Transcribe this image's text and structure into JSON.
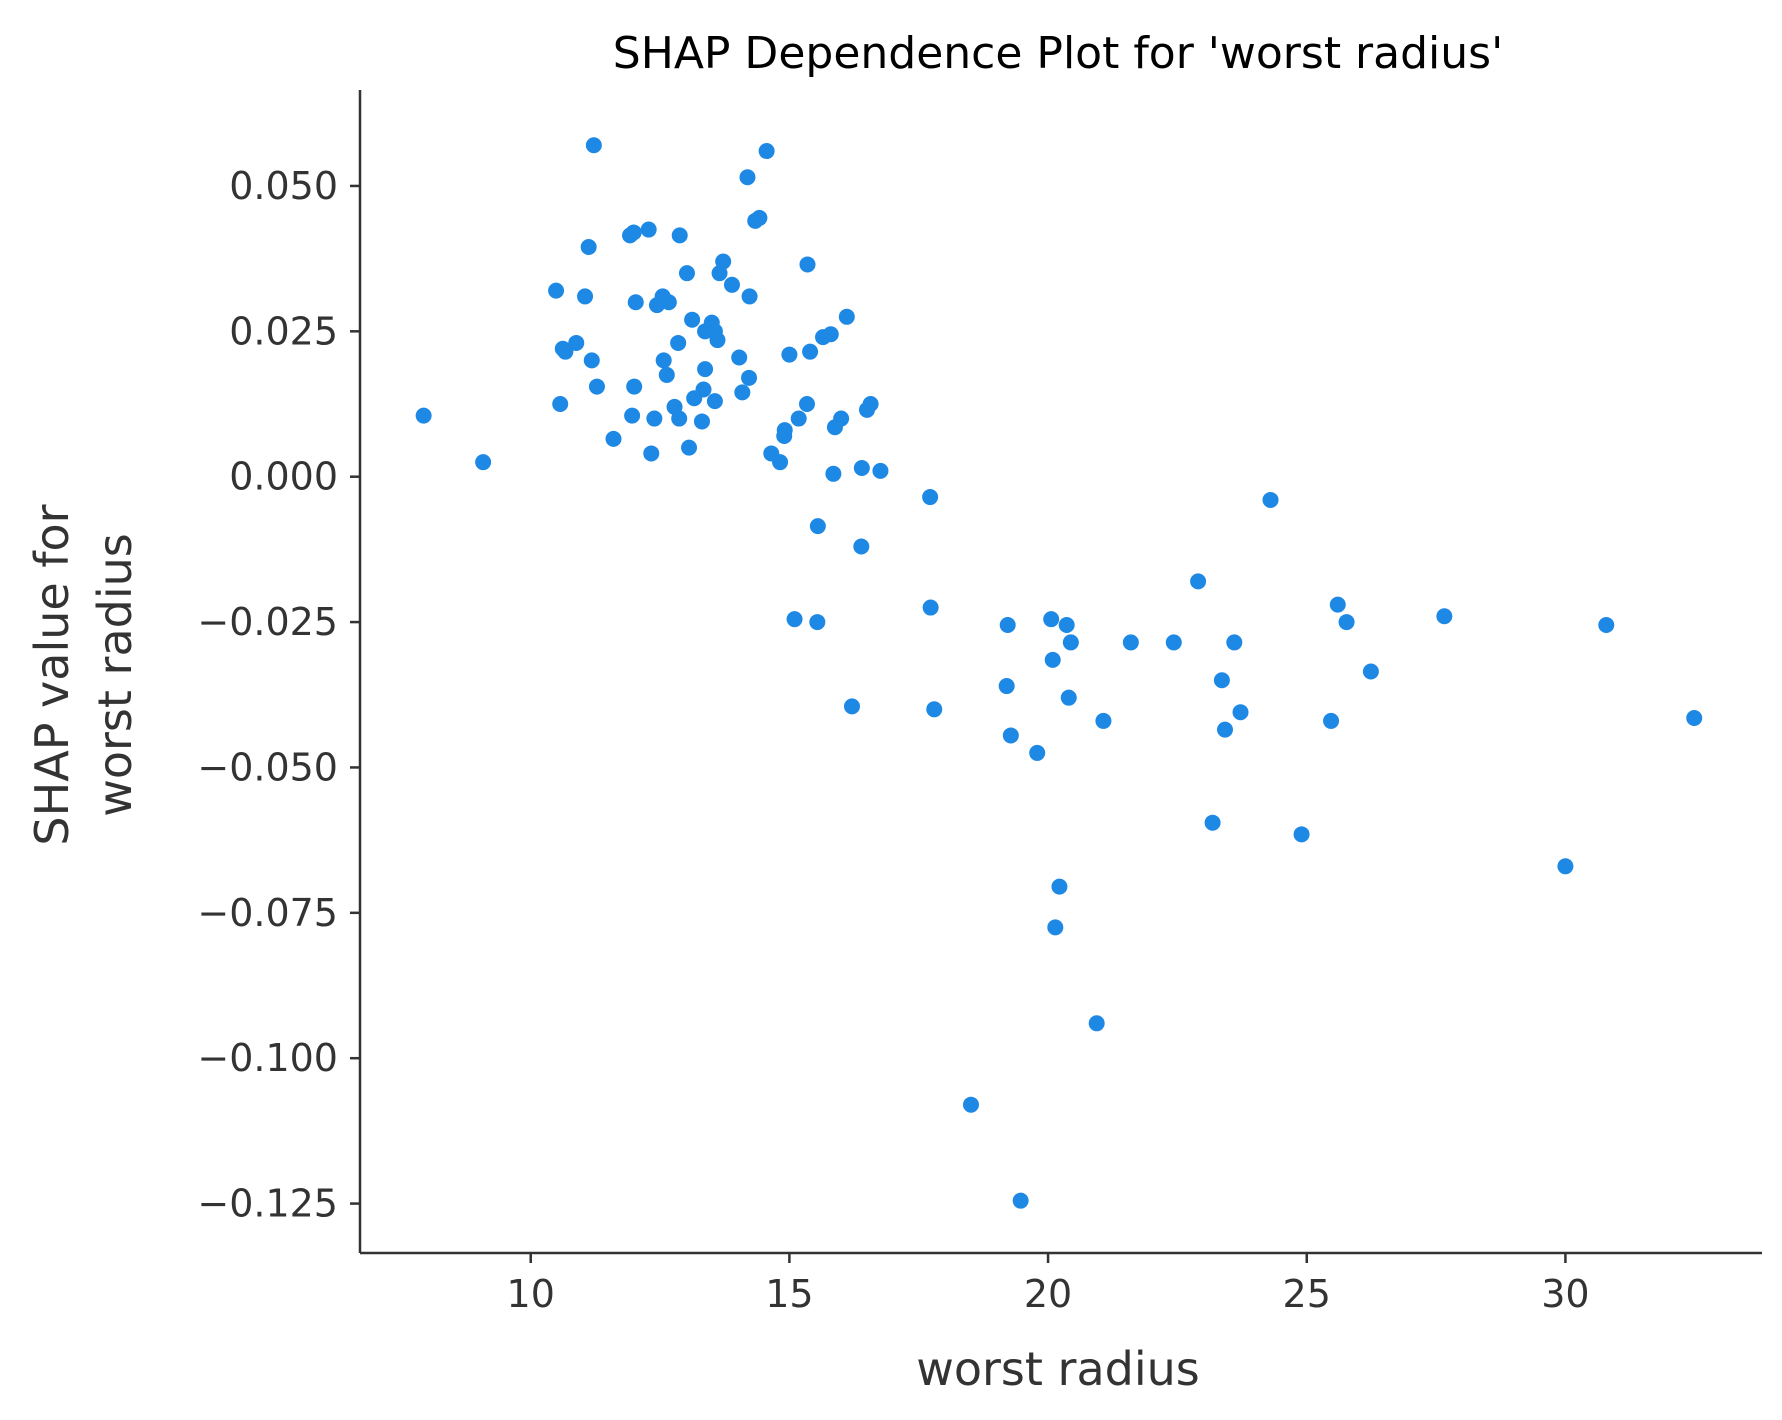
{
  "chart_data": {
    "type": "scatter",
    "title": "SHAP Dependence Plot for 'worst radius'",
    "xlabel": "worst radius",
    "ylabel_lines": [
      "SHAP value for",
      "worst radius"
    ],
    "xlim": [
      6.7,
      33.8
    ],
    "ylim": [
      -0.1335,
      0.0665
    ],
    "xticks": [
      {
        "value": 10,
        "label": "10"
      },
      {
        "value": 15,
        "label": "15"
      },
      {
        "value": 20,
        "label": "20"
      },
      {
        "value": 25,
        "label": "25"
      },
      {
        "value": 30,
        "label": "30"
      }
    ],
    "yticks": [
      {
        "value": 0.05,
        "label": "0.050"
      },
      {
        "value": 0.025,
        "label": "0.025"
      },
      {
        "value": 0.0,
        "label": "0.000"
      },
      {
        "value": -0.025,
        "label": "−0.025"
      },
      {
        "value": -0.05,
        "label": "−0.050"
      },
      {
        "value": -0.075,
        "label": "−0.075"
      },
      {
        "value": -0.1,
        "label": "−0.100"
      },
      {
        "value": -0.125,
        "label": "−0.125"
      }
    ],
    "grid": false,
    "point_color": "#1e88e5",
    "axis_color": "#333333",
    "points": [
      [
        7.93,
        0.0105
      ],
      [
        9.08,
        0.0025
      ],
      [
        10.49,
        0.032
      ],
      [
        10.57,
        0.0125
      ],
      [
        10.62,
        0.022
      ],
      [
        10.67,
        0.0215
      ],
      [
        10.88,
        0.023
      ],
      [
        11.05,
        0.031
      ],
      [
        11.12,
        0.0395
      ],
      [
        11.18,
        0.02
      ],
      [
        11.22,
        0.057
      ],
      [
        11.28,
        0.0155
      ],
      [
        11.6,
        0.0065
      ],
      [
        11.92,
        0.0415
      ],
      [
        11.96,
        0.0105
      ],
      [
        11.99,
        0.042
      ],
      [
        12.0,
        0.0155
      ],
      [
        12.03,
        0.03
      ],
      [
        12.28,
        0.0425
      ],
      [
        12.33,
        0.004
      ],
      [
        12.39,
        0.01
      ],
      [
        12.44,
        0.0295
      ],
      [
        12.55,
        0.031
      ],
      [
        12.57,
        0.02
      ],
      [
        12.63,
        0.0175
      ],
      [
        12.67,
        0.03
      ],
      [
        12.78,
        0.012
      ],
      [
        12.85,
        0.023
      ],
      [
        12.87,
        0.01
      ],
      [
        12.88,
        0.0415
      ],
      [
        13.02,
        0.035
      ],
      [
        13.06,
        0.005
      ],
      [
        13.12,
        0.027
      ],
      [
        13.16,
        0.0135
      ],
      [
        13.31,
        0.0095
      ],
      [
        13.34,
        0.015
      ],
      [
        13.37,
        0.025
      ],
      [
        13.37,
        0.0185
      ],
      [
        13.5,
        0.0265
      ],
      [
        13.56,
        0.025
      ],
      [
        13.56,
        0.013
      ],
      [
        13.61,
        0.0235
      ],
      [
        13.65,
        0.035
      ],
      [
        13.72,
        0.037
      ],
      [
        13.89,
        0.033
      ],
      [
        14.03,
        0.0205
      ],
      [
        14.09,
        0.0145
      ],
      [
        14.19,
        0.0515
      ],
      [
        14.22,
        0.017
      ],
      [
        14.23,
        0.031
      ],
      [
        14.34,
        0.044
      ],
      [
        14.42,
        0.0445
      ],
      [
        14.56,
        0.056
      ],
      [
        14.65,
        0.004
      ],
      [
        14.82,
        0.0025
      ],
      [
        14.9,
        0.007
      ],
      [
        14.91,
        0.008
      ],
      [
        15.0,
        0.021
      ],
      [
        15.1,
        -0.0245
      ],
      [
        15.18,
        0.01
      ],
      [
        15.34,
        0.0125
      ],
      [
        15.35,
        0.0365
      ],
      [
        15.4,
        0.0215
      ],
      [
        15.54,
        -0.025
      ],
      [
        15.55,
        -0.0085
      ],
      [
        15.65,
        0.024
      ],
      [
        15.8,
        0.0245
      ],
      [
        15.85,
        0.0005
      ],
      [
        15.88,
        0.0085
      ],
      [
        16.0,
        0.01
      ],
      [
        16.11,
        0.0275
      ],
      [
        16.21,
        -0.0395
      ],
      [
        16.39,
        -0.012
      ],
      [
        16.4,
        0.0015
      ],
      [
        16.5,
        0.0115
      ],
      [
        16.57,
        0.0125
      ],
      [
        16.76,
        0.001
      ],
      [
        17.72,
        -0.0035
      ],
      [
        17.73,
        -0.0225
      ],
      [
        17.8,
        -0.04
      ],
      [
        18.51,
        -0.108
      ],
      [
        19.2,
        -0.036
      ],
      [
        19.22,
        -0.0255
      ],
      [
        19.28,
        -0.0445
      ],
      [
        19.47,
        -0.1245
      ],
      [
        19.79,
        -0.0475
      ],
      [
        20.06,
        -0.0245
      ],
      [
        20.09,
        -0.0315
      ],
      [
        20.14,
        -0.0775
      ],
      [
        20.22,
        -0.0705
      ],
      [
        20.36,
        -0.0255
      ],
      [
        20.4,
        -0.038
      ],
      [
        20.44,
        -0.0285
      ],
      [
        20.94,
        -0.094
      ],
      [
        21.07,
        -0.042
      ],
      [
        21.6,
        -0.0285
      ],
      [
        22.43,
        -0.0285
      ],
      [
        22.9,
        -0.018
      ],
      [
        23.18,
        -0.0595
      ],
      [
        23.36,
        -0.035
      ],
      [
        23.42,
        -0.0435
      ],
      [
        23.6,
        -0.0285
      ],
      [
        23.72,
        -0.0405
      ],
      [
        24.3,
        -0.004
      ],
      [
        24.9,
        -0.0615
      ],
      [
        25.47,
        -0.042
      ],
      [
        25.6,
        -0.022
      ],
      [
        25.77,
        -0.025
      ],
      [
        26.24,
        -0.0335
      ],
      [
        27.66,
        -0.024
      ],
      [
        30.0,
        -0.067
      ],
      [
        30.79,
        -0.0255
      ],
      [
        32.49,
        -0.0415
      ]
    ]
  }
}
